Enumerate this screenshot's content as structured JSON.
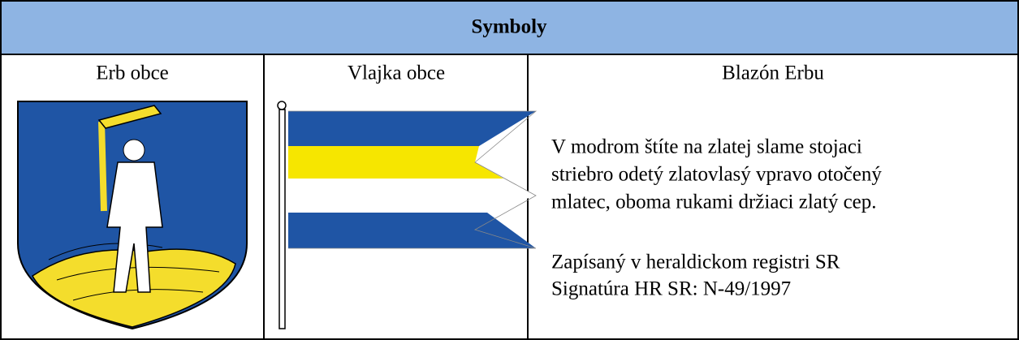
{
  "header": {
    "title": "Symboly"
  },
  "columns": [
    "Erb obce",
    "Vlajka obce",
    "Blazón Erbu"
  ],
  "blazon": {
    "description": [
      "V modrom štíte na zlatej slame stojaci",
      "striebro odetý zlatovlasý vpravo otočený",
      "mlatec, oboma rukami držiaci zlatý cep."
    ],
    "registration": [
      "Zapísaný v heraldickom registri SR",
      "Signatúra HR SR: N-49/1997"
    ]
  }
}
